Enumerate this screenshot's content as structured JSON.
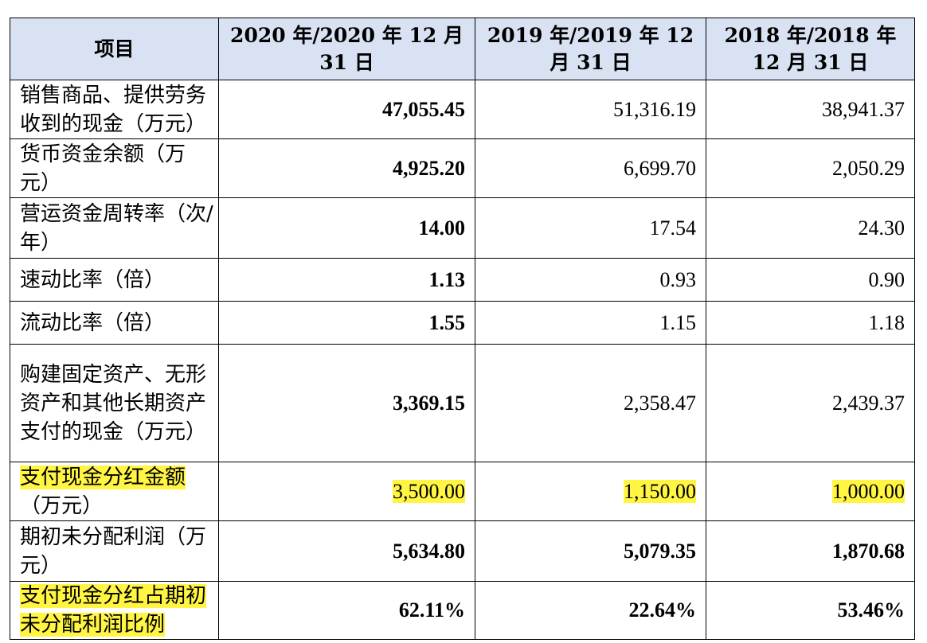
{
  "header": {
    "col0": "项目",
    "col1": "2020 年/2020 年 12 月 31 日",
    "col2": "2019 年/2019 年 12 月 31 日",
    "col3": "2018 年/2018 年 12 月 31 日"
  },
  "rows": [
    {
      "label": "销售商品、提供劳务收到的现金（万元）",
      "v2020": "47,055.45",
      "v2019": "51,316.19",
      "v2018": "38,941.37"
    },
    {
      "label": "货币资金余额（万元）",
      "v2020": "4,925.20",
      "v2019": "6,699.70",
      "v2018": "2,050.29"
    },
    {
      "label": "营运资金周转率（次/年）",
      "v2020": "14.00",
      "v2019": "17.54",
      "v2018": "24.30"
    },
    {
      "label": "速动比率（倍）",
      "v2020": "1.13",
      "v2019": "0.93",
      "v2018": "0.90"
    },
    {
      "label": "流动比率（倍）",
      "v2020": "1.55",
      "v2019": "1.15",
      "v2018": "1.18"
    },
    {
      "label": "购建固定资产、无形资产和其他长期资产支付的现金（万元）",
      "v2020": "3,369.15",
      "v2019": "2,358.47",
      "v2018": "2,439.37"
    },
    {
      "label_hl": "支付现金分红金额",
      "label_rest": "（万元）",
      "v2020": "3,500.00",
      "v2019": "1,150.00",
      "v2018": "1,000.00"
    },
    {
      "label": "期初未分配利润（万元）",
      "v2020": "5,634.80",
      "v2019": "5,079.35",
      "v2018": "1,870.68"
    },
    {
      "label": "支付现金分红占期初未分配利润比例",
      "v2020": "62.11%",
      "v2019": "22.64%",
      "v2018": "53.46%"
    }
  ],
  "highlight_color": "#fff542",
  "header_bg": "#d9e2f3"
}
